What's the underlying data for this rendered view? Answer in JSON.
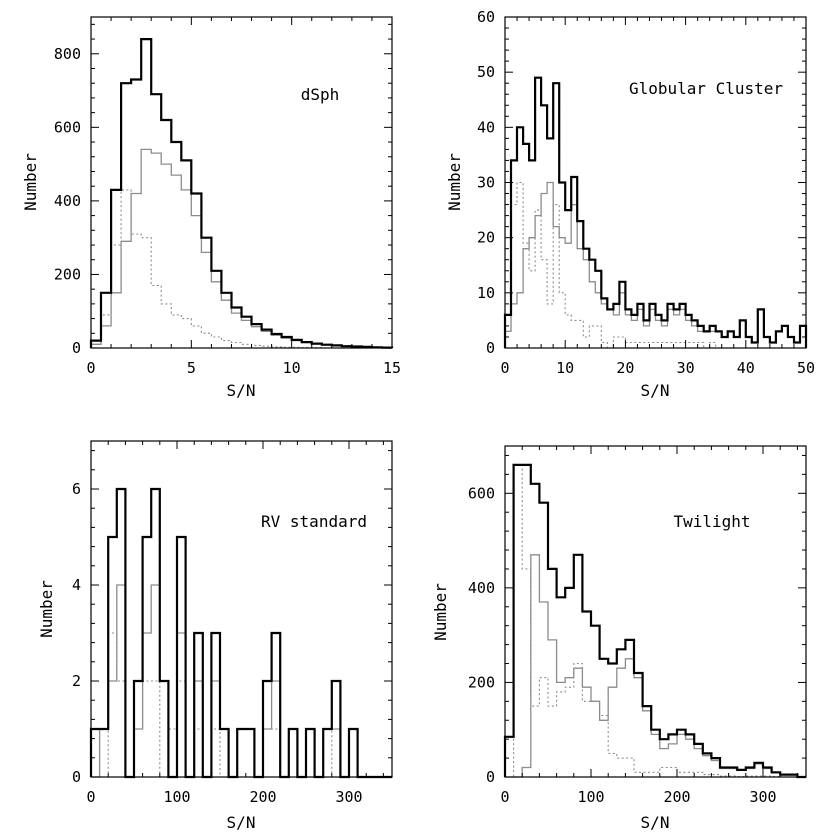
{
  "chart_data": [
    {
      "type": "histogram",
      "title": "dSph",
      "xlabel": "S/N",
      "ylabel": "Number",
      "xlim": [
        0,
        15
      ],
      "ylim": [
        0,
        900
      ],
      "xticks": [
        0,
        5,
        10,
        15
      ],
      "yticks": [
        0,
        200,
        400,
        600,
        800
      ],
      "bin_edges": [
        0,
        0.5,
        1,
        1.5,
        2,
        2.5,
        3,
        3.5,
        4,
        4.5,
        5,
        5.5,
        6,
        6.5,
        7,
        7.5,
        8,
        8.5,
        9,
        9.5,
        10,
        10.5,
        11,
        11.5,
        12,
        12.5,
        13,
        13.5,
        14,
        14.5,
        15
      ],
      "series": [
        {
          "name": "total",
          "style": "thick",
          "values": [
            20,
            150,
            430,
            720,
            730,
            840,
            690,
            620,
            560,
            510,
            420,
            300,
            210,
            150,
            110,
            85,
            65,
            50,
            38,
            30,
            22,
            16,
            12,
            9,
            7,
            5,
            4,
            3,
            2,
            1
          ]
        },
        {
          "name": "solid",
          "style": "thin",
          "values": [
            10,
            60,
            150,
            290,
            420,
            540,
            530,
            500,
            470,
            430,
            360,
            260,
            180,
            130,
            95,
            75,
            58,
            45,
            35,
            27,
            20,
            15,
            11,
            8,
            6,
            5,
            4,
            3,
            2,
            1
          ]
        },
        {
          "name": "dotted",
          "style": "dotted",
          "values": [
            10,
            90,
            280,
            430,
            310,
            300,
            170,
            120,
            90,
            80,
            60,
            40,
            30,
            20,
            15,
            10,
            7,
            5,
            3,
            2,
            2,
            1,
            1,
            0,
            0,
            0,
            0,
            0,
            0,
            0
          ]
        }
      ]
    },
    {
      "type": "histogram",
      "title": "Globular Cluster",
      "xlabel": "S/N",
      "ylabel": "Number",
      "xlim": [
        0,
        50
      ],
      "ylim": [
        0,
        60
      ],
      "xticks": [
        0,
        10,
        20,
        30,
        40,
        50
      ],
      "yticks": [
        0,
        10,
        20,
        30,
        40,
        50,
        60
      ],
      "bin_edges": [
        0,
        1,
        2,
        3,
        4,
        5,
        6,
        7,
        8,
        9,
        10,
        11,
        12,
        13,
        14,
        15,
        16,
        17,
        18,
        19,
        20,
        21,
        22,
        23,
        24,
        25,
        26,
        27,
        28,
        29,
        30,
        31,
        32,
        33,
        34,
        35,
        36,
        37,
        38,
        39,
        40,
        41,
        42,
        43,
        44,
        45,
        46,
        47,
        48,
        49,
        50
      ],
      "series": [
        {
          "name": "total",
          "style": "thick",
          "values": [
            6,
            34,
            40,
            37,
            34,
            49,
            44,
            38,
            48,
            30,
            25,
            31,
            23,
            18,
            16,
            14,
            9,
            7,
            8,
            12,
            7,
            6,
            8,
            5,
            8,
            6,
            5,
            8,
            7,
            8,
            6,
            5,
            4,
            3,
            4,
            3,
            2,
            3,
            2,
            5,
            2,
            1,
            7,
            2,
            1,
            3,
            4,
            2,
            1,
            4
          ]
        },
        {
          "name": "solid",
          "style": "thin",
          "values": [
            3,
            8,
            10,
            18,
            20,
            24,
            28,
            30,
            22,
            20,
            19,
            26,
            18,
            16,
            12,
            10,
            8,
            7,
            6,
            10,
            6,
            5,
            7,
            4,
            7,
            5,
            4,
            7,
            6,
            7,
            5,
            4,
            3,
            3,
            3,
            3,
            2,
            3,
            2,
            5,
            2,
            1,
            7,
            2,
            1,
            3,
            4,
            2,
            1,
            4
          ]
        },
        {
          "name": "dotted",
          "style": "dotted",
          "values": [
            3,
            26,
            30,
            19,
            14,
            25,
            16,
            8,
            26,
            10,
            6,
            5,
            5,
            2,
            4,
            4,
            1,
            0,
            2,
            2,
            1,
            1,
            1,
            1,
            1,
            1,
            1,
            1,
            1,
            1,
            1,
            1,
            1,
            0,
            1,
            0,
            0,
            0,
            0,
            0,
            0,
            0,
            0,
            0,
            0,
            0,
            0,
            0,
            0,
            0
          ]
        }
      ]
    },
    {
      "type": "histogram",
      "title": "RV standard",
      "xlabel": "S/N",
      "ylabel": "Number",
      "xlim": [
        0,
        350
      ],
      "ylim": [
        0,
        7
      ],
      "xticks": [
        0,
        100,
        200,
        300
      ],
      "yticks": [
        0,
        2,
        4,
        6
      ],
      "bin_edges": [
        0,
        10,
        20,
        30,
        40,
        50,
        60,
        70,
        80,
        90,
        100,
        110,
        120,
        130,
        140,
        150,
        160,
        170,
        180,
        190,
        200,
        210,
        220,
        230,
        240,
        250,
        260,
        270,
        280,
        290,
        300,
        310,
        320,
        330,
        340,
        350
      ],
      "series": [
        {
          "name": "total",
          "style": "thick",
          "values": [
            1,
            1,
            5,
            6,
            0,
            2,
            5,
            6,
            2,
            0,
            5,
            0,
            3,
            0,
            3,
            1,
            0,
            1,
            1,
            0,
            2,
            3,
            0,
            1,
            0,
            1,
            0,
            1,
            2,
            0,
            1,
            0,
            0,
            0,
            0
          ]
        },
        {
          "name": "solid",
          "style": "thin",
          "values": [
            0,
            1,
            2,
            4,
            0,
            1,
            3,
            4,
            2,
            0,
            3,
            0,
            2,
            0,
            2,
            1,
            0,
            1,
            1,
            0,
            1,
            2,
            0,
            1,
            0,
            1,
            0,
            1,
            1,
            0,
            1,
            0,
            0,
            0,
            0
          ]
        },
        {
          "name": "dotted",
          "style": "dotted",
          "values": [
            1,
            0,
            3,
            2,
            0,
            1,
            2,
            2,
            0,
            1,
            2,
            0,
            1,
            0,
            1,
            0,
            0,
            0,
            0,
            0,
            1,
            1,
            0,
            0,
            0,
            0,
            0,
            0,
            1,
            0,
            0,
            0,
            0,
            0,
            0
          ]
        }
      ]
    },
    {
      "type": "histogram",
      "title": "Twilight",
      "xlabel": "S/N",
      "ylabel": "Number",
      "xlim": [
        0,
        350
      ],
      "ylim": [
        0,
        700
      ],
      "xticks": [
        0,
        100,
        200,
        300
      ],
      "yticks": [
        0,
        200,
        400,
        600
      ],
      "bin_edges": [
        0,
        10,
        20,
        30,
        40,
        50,
        60,
        70,
        80,
        90,
        100,
        110,
        120,
        130,
        140,
        150,
        160,
        170,
        180,
        190,
        200,
        210,
        220,
        230,
        240,
        250,
        260,
        270,
        280,
        290,
        300,
        310,
        320,
        330,
        340,
        350
      ],
      "series": [
        {
          "name": "total",
          "style": "thick",
          "values": [
            85,
            660,
            660,
            620,
            580,
            440,
            380,
            400,
            470,
            350,
            320,
            250,
            240,
            270,
            290,
            220,
            150,
            100,
            80,
            90,
            100,
            90,
            70,
            50,
            40,
            20,
            20,
            15,
            20,
            30,
            20,
            10,
            5,
            5,
            0
          ]
        },
        {
          "name": "solid",
          "style": "thin",
          "values": [
            0,
            0,
            20,
            470,
            370,
            290,
            200,
            210,
            230,
            190,
            160,
            120,
            190,
            230,
            250,
            210,
            140,
            90,
            60,
            70,
            90,
            80,
            60,
            45,
            35,
            18,
            18,
            14,
            18,
            28,
            18,
            9,
            5,
            5,
            0
          ]
        },
        {
          "name": "dotted",
          "style": "dotted",
          "values": [
            0,
            660,
            440,
            150,
            210,
            150,
            180,
            190,
            240,
            160,
            160,
            130,
            50,
            40,
            40,
            10,
            10,
            10,
            20,
            20,
            10,
            10,
            10,
            5,
            5,
            2,
            2,
            1,
            2,
            2,
            2,
            1,
            0,
            0,
            0
          ]
        }
      ]
    }
  ]
}
